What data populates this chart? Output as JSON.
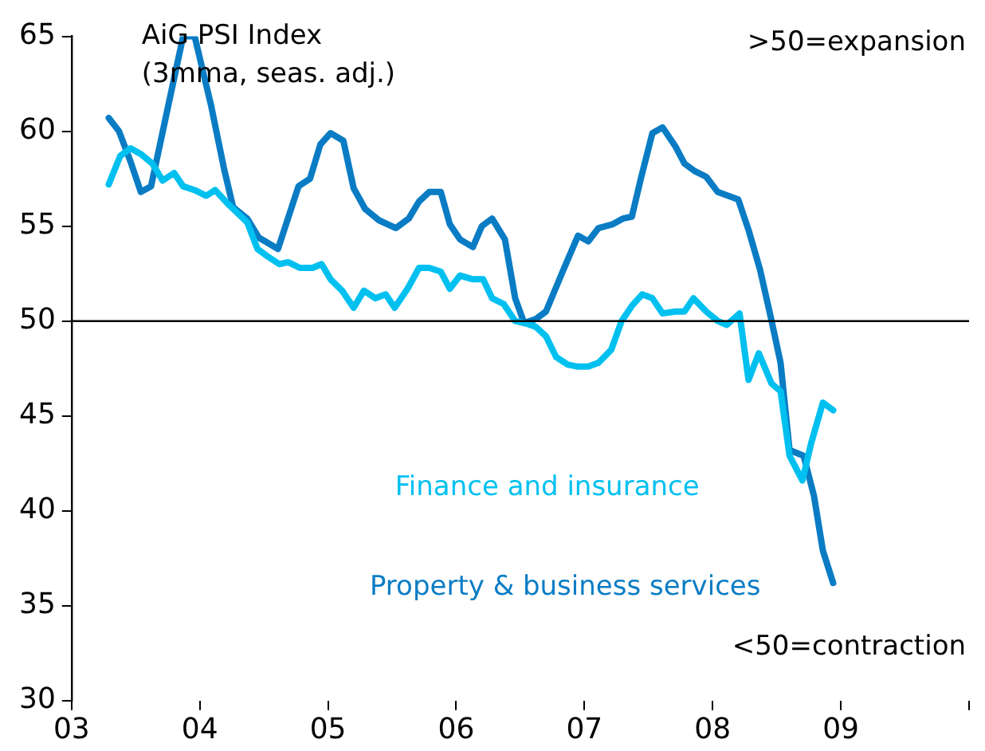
{
  "chart_data": {
    "type": "line",
    "title": "AiG PSI Index",
    "subtitle": "(3mma, seas. adj.)",
    "annotations": [
      ">50=expansion",
      "<50=contraction"
    ],
    "xlim": [
      2003,
      2010
    ],
    "xticks": [
      {
        "value": 2003,
        "label": "03"
      },
      {
        "value": 2004,
        "label": "04"
      },
      {
        "value": 2005,
        "label": "05"
      },
      {
        "value": 2006,
        "label": "06"
      },
      {
        "value": 2007,
        "label": "07"
      },
      {
        "value": 2008,
        "label": "08"
      },
      {
        "value": 2009,
        "label": "09"
      },
      {
        "value": 2010,
        "label": null
      }
    ],
    "ylim": [
      30,
      65
    ],
    "yticks": [
      30,
      35,
      40,
      45,
      50,
      55,
      60,
      65
    ],
    "grid": false,
    "legend": false,
    "marker": "none",
    "line_style": "solid",
    "ref_lines": [
      {
        "axis": "y",
        "value": 50,
        "color": "#000000"
      }
    ],
    "series": [
      {
        "name": "Finance and insurance",
        "color": "#00c0f0",
        "x": [
          2003.29,
          2003.38,
          2003.46,
          2003.54,
          2003.63,
          2003.71,
          2003.8,
          2003.87,
          2003.96,
          2004.05,
          2004.12,
          2004.23,
          2004.37,
          2004.45,
          2004.53,
          2004.62,
          2004.69,
          2004.78,
          2004.88,
          2004.95,
          2005.02,
          2005.11,
          2005.2,
          2005.28,
          2005.37,
          2005.45,
          2005.52,
          2005.62,
          2005.71,
          2005.79,
          2005.88,
          2005.95,
          2006.03,
          2006.13,
          2006.21,
          2006.28,
          2006.37,
          2006.46,
          2006.53,
          2006.62,
          2006.7,
          2006.78,
          2006.87,
          2006.95,
          2007.03,
          2007.11,
          2007.21,
          2007.29,
          2007.37,
          2007.45,
          2007.53,
          2007.61,
          2007.71,
          2007.78,
          2007.85,
          2007.95,
          2008.04,
          2008.11,
          2008.21,
          2008.28,
          2008.36,
          2008.46,
          2008.53,
          2008.6,
          2008.7,
          2008.77,
          2008.86,
          2008.94
        ],
        "values": [
          57.2,
          58.7,
          59.1,
          58.8,
          58.3,
          57.4,
          57.8,
          57.1,
          56.9,
          56.6,
          56.9,
          56.1,
          55.2,
          53.8,
          53.4,
          53.0,
          53.1,
          52.8,
          52.8,
          53.0,
          52.2,
          51.6,
          50.7,
          51.6,
          51.2,
          51.4,
          50.7,
          51.7,
          52.8,
          52.8,
          52.6,
          51.7,
          52.4,
          52.2,
          52.2,
          51.2,
          50.9,
          50.0,
          49.9,
          49.7,
          49.2,
          48.1,
          47.7,
          47.6,
          47.6,
          47.8,
          48.5,
          50.0,
          50.8,
          51.4,
          51.2,
          50.4,
          50.5,
          50.5,
          51.2,
          50.5,
          50.0,
          49.8,
          50.4,
          46.9,
          48.3,
          46.7,
          46.3,
          42.9,
          41.6,
          43.6,
          45.7,
          45.3
        ]
      },
      {
        "name": "Property & business services",
        "color": "#0a7cc4",
        "x": [
          2003.29,
          2003.37,
          2003.46,
          2003.54,
          2003.62,
          2003.74,
          2003.87,
          2003.96,
          2004.09,
          2004.19,
          2004.26,
          2004.37,
          2004.46,
          2004.61,
          2004.77,
          2004.86,
          2004.94,
          2005.02,
          2005.12,
          2005.2,
          2005.29,
          2005.4,
          2005.53,
          2005.63,
          2005.71,
          2005.79,
          2005.88,
          2005.95,
          2006.03,
          2006.13,
          2006.2,
          2006.28,
          2006.38,
          2006.46,
          2006.53,
          2006.62,
          2006.7,
          2006.83,
          2006.95,
          2007.03,
          2007.11,
          2007.22,
          2007.3,
          2007.37,
          2007.44,
          2007.53,
          2007.61,
          2007.71,
          2007.78,
          2007.86,
          2007.95,
          2008.04,
          2008.12,
          2008.2,
          2008.28,
          2008.37,
          2008.46,
          2008.53,
          2008.6,
          2008.71,
          2008.79,
          2008.86,
          2008.94
        ],
        "values": [
          60.7,
          60.0,
          58.4,
          56.8,
          57.1,
          60.9,
          65.0,
          65.0,
          61.3,
          58.0,
          56.0,
          55.4,
          54.4,
          53.8,
          57.1,
          57.5,
          59.3,
          59.9,
          59.5,
          57.0,
          55.9,
          55.3,
          54.9,
          55.4,
          56.3,
          56.8,
          56.8,
          55.1,
          54.3,
          53.9,
          55.0,
          55.4,
          54.3,
          51.2,
          49.9,
          50.1,
          50.5,
          52.6,
          54.5,
          54.2,
          54.9,
          55.1,
          55.4,
          55.5,
          57.5,
          59.9,
          60.2,
          59.2,
          58.3,
          57.9,
          57.6,
          56.8,
          56.6,
          56.4,
          54.8,
          52.7,
          50.0,
          47.8,
          43.2,
          42.9,
          40.8,
          37.9,
          36.2
        ]
      }
    ]
  }
}
